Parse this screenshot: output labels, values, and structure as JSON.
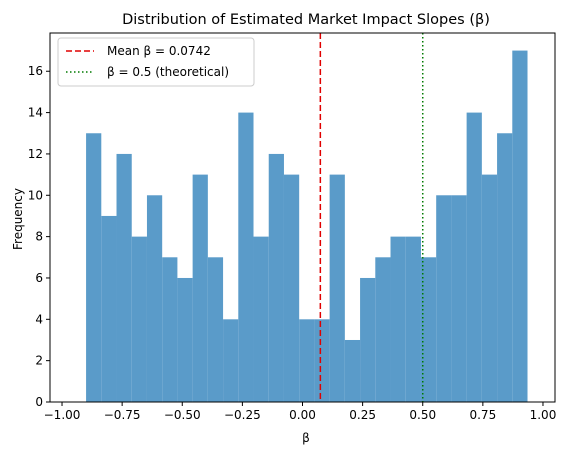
{
  "chart_data": {
    "type": "bar",
    "title": "Distribution of Estimated Market Impact Slopes (β)",
    "xlabel": "β",
    "ylabel": "Frequency",
    "xlim": [
      -1.05,
      1.05
    ],
    "ylim": [
      0,
      17.85
    ],
    "bin_start": -0.9,
    "bin_width": 0.0633,
    "values": [
      13,
      9,
      12,
      8,
      10,
      7,
      6,
      11,
      7,
      4,
      14,
      8,
      12,
      11,
      4,
      4,
      11,
      3,
      6,
      7,
      8,
      8,
      7,
      10,
      10,
      14,
      11,
      13,
      17
    ],
    "x_ticks": [
      -1.0,
      -0.75,
      -0.5,
      -0.25,
      0.0,
      0.25,
      0.5,
      0.75,
      1.0
    ],
    "x_tick_labels": [
      "−1.00",
      "−0.75",
      "−0.50",
      "−0.25",
      "0.00",
      "0.25",
      "0.50",
      "0.75",
      "1.00"
    ],
    "y_ticks": [
      0,
      2,
      4,
      6,
      8,
      10,
      12,
      14,
      16
    ],
    "y_tick_labels": [
      "0",
      "2",
      "4",
      "6",
      "8",
      "10",
      "12",
      "14",
      "16"
    ],
    "bar_color": "#5a9bc9",
    "grid": false,
    "lines": [
      {
        "name": "Mean β = 0.0742",
        "x": 0.0742,
        "color": "#e00000",
        "style": "dashed"
      },
      {
        "name": "β = 0.5 (theoretical)",
        "x": 0.5,
        "color": "#007a00",
        "style": "dotted"
      }
    ],
    "legend_position": "top-left"
  }
}
